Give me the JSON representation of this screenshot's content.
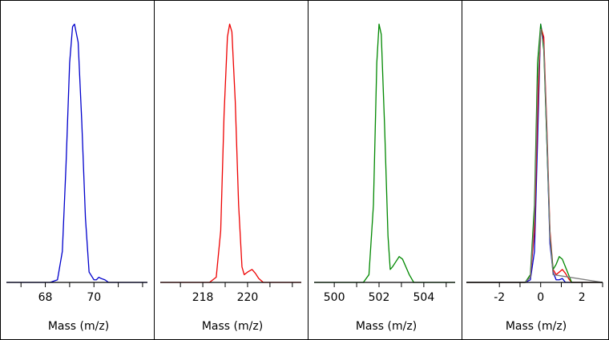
{
  "chart_data": [
    {
      "type": "line",
      "xlabel": "Mass (m/z)",
      "xlim": [
        66.4,
        72.2
      ],
      "ylim": [
        0,
        1.05
      ],
      "xticks": [
        {
          "value": 67,
          "label": ""
        },
        {
          "value": 68,
          "label": "68"
        },
        {
          "value": 69,
          "label": ""
        },
        {
          "value": 70,
          "label": "70"
        },
        {
          "value": 71,
          "label": ""
        },
        {
          "value": 72,
          "label": ""
        }
      ],
      "series": [
        {
          "color": "#0000cc",
          "x": [
            66.4,
            68.2,
            68.5,
            68.7,
            68.85,
            69.0,
            69.12,
            69.2,
            69.35,
            69.5,
            69.65,
            69.8,
            70.0,
            70.1,
            70.2,
            70.3,
            70.45,
            70.6,
            72.2
          ],
          "y": [
            0,
            0,
            0.01,
            0.12,
            0.45,
            0.85,
            0.99,
            1.0,
            0.93,
            0.62,
            0.25,
            0.04,
            0.01,
            0.01,
            0.02,
            0.015,
            0.01,
            0,
            0
          ]
        }
      ]
    },
    {
      "type": "line",
      "xlabel": "Mass (m/z)",
      "xlim": [
        216.1,
        222.4
      ],
      "ylim": [
        0,
        1.05
      ],
      "xticks": [
        {
          "value": 217,
          "label": ""
        },
        {
          "value": 218,
          "label": "218"
        },
        {
          "value": 219,
          "label": ""
        },
        {
          "value": 220,
          "label": "220"
        },
        {
          "value": 221,
          "label": ""
        },
        {
          "value": 222,
          "label": ""
        }
      ],
      "series": [
        {
          "color": "#ee0000",
          "x": [
            216.1,
            218.3,
            218.6,
            218.8,
            218.95,
            219.1,
            219.2,
            219.3,
            219.45,
            219.6,
            219.75,
            219.85,
            220.0,
            220.2,
            220.35,
            220.5,
            220.7,
            222.4
          ],
          "y": [
            0,
            0,
            0.02,
            0.2,
            0.65,
            0.95,
            1.0,
            0.97,
            0.7,
            0.3,
            0.06,
            0.03,
            0.04,
            0.05,
            0.035,
            0.015,
            0,
            0
          ]
        }
      ]
    },
    {
      "type": "line",
      "xlabel": "Mass (m/z)",
      "xlim": [
        499.1,
        505.4
      ],
      "ylim": [
        0,
        1.05
      ],
      "xticks": [
        {
          "value": 500,
          "label": "500"
        },
        {
          "value": 501,
          "label": ""
        },
        {
          "value": 502,
          "label": "502"
        },
        {
          "value": 503,
          "label": ""
        },
        {
          "value": 504,
          "label": "504"
        },
        {
          "value": 505,
          "label": ""
        }
      ],
      "series": [
        {
          "color": "#008800",
          "x": [
            499.1,
            501.3,
            501.55,
            501.75,
            501.9,
            502.0,
            502.1,
            502.25,
            502.4,
            502.5,
            502.6,
            502.75,
            502.9,
            503.05,
            503.2,
            503.35,
            503.55,
            505.4
          ],
          "y": [
            0,
            0,
            0.03,
            0.3,
            0.85,
            1.0,
            0.96,
            0.6,
            0.18,
            0.05,
            0.06,
            0.08,
            0.1,
            0.09,
            0.06,
            0.03,
            0,
            0
          ]
        }
      ]
    },
    {
      "type": "line",
      "xlabel": "Mass (m/z)",
      "xlim": [
        -3.6,
        3.0
      ],
      "ylim": [
        0,
        1.05
      ],
      "xticks": [
        {
          "value": -2,
          "label": "-2"
        },
        {
          "value": -1,
          "label": ""
        },
        {
          "value": 0,
          "label": "0"
        },
        {
          "value": 1,
          "label": ""
        },
        {
          "value": 2,
          "label": "2"
        },
        {
          "value": 3,
          "label": ""
        }
      ],
      "series": [
        {
          "color": "#0000cc",
          "x": [
            -3.6,
            -0.75,
            -0.5,
            -0.3,
            -0.15,
            0.0,
            0.15,
            0.3,
            0.45,
            0.6,
            0.75,
            0.9,
            1.05,
            1.2,
            3.0
          ],
          "y": [
            0,
            0,
            0.01,
            0.12,
            0.55,
            1.0,
            0.93,
            0.55,
            0.15,
            0.04,
            0.01,
            0.01,
            0.015,
            0,
            0
          ]
        },
        {
          "color": "#ee0000",
          "x": [
            -3.6,
            -0.75,
            -0.5,
            -0.3,
            -0.15,
            0.0,
            0.15,
            0.3,
            0.45,
            0.6,
            0.75,
            0.9,
            1.05,
            1.2,
            1.35,
            1.5,
            3.0
          ],
          "y": [
            0,
            0,
            0.02,
            0.2,
            0.65,
            0.99,
            0.95,
            0.6,
            0.2,
            0.05,
            0.03,
            0.04,
            0.05,
            0.035,
            0.015,
            0,
            0
          ]
        },
        {
          "color": "#008800",
          "x": [
            -3.6,
            -0.75,
            -0.5,
            -0.3,
            -0.15,
            0.0,
            0.15,
            0.3,
            0.45,
            0.6,
            0.75,
            0.9,
            1.05,
            1.2,
            1.35,
            1.5,
            3.0
          ],
          "y": [
            0,
            0,
            0.03,
            0.3,
            0.85,
            1.0,
            0.9,
            0.55,
            0.18,
            0.05,
            0.07,
            0.1,
            0.09,
            0.06,
            0.03,
            0,
            0
          ]
        },
        {
          "color": "#7a7a7a",
          "x": [
            -3.6,
            -0.75,
            -0.5,
            -0.3,
            -0.15,
            0.0,
            0.15,
            0.3,
            0.45,
            0.6,
            3.0
          ],
          "y": [
            0,
            0,
            0.02,
            0.25,
            0.75,
            0.98,
            0.92,
            0.58,
            0.18,
            0.03,
            0
          ]
        }
      ]
    }
  ]
}
